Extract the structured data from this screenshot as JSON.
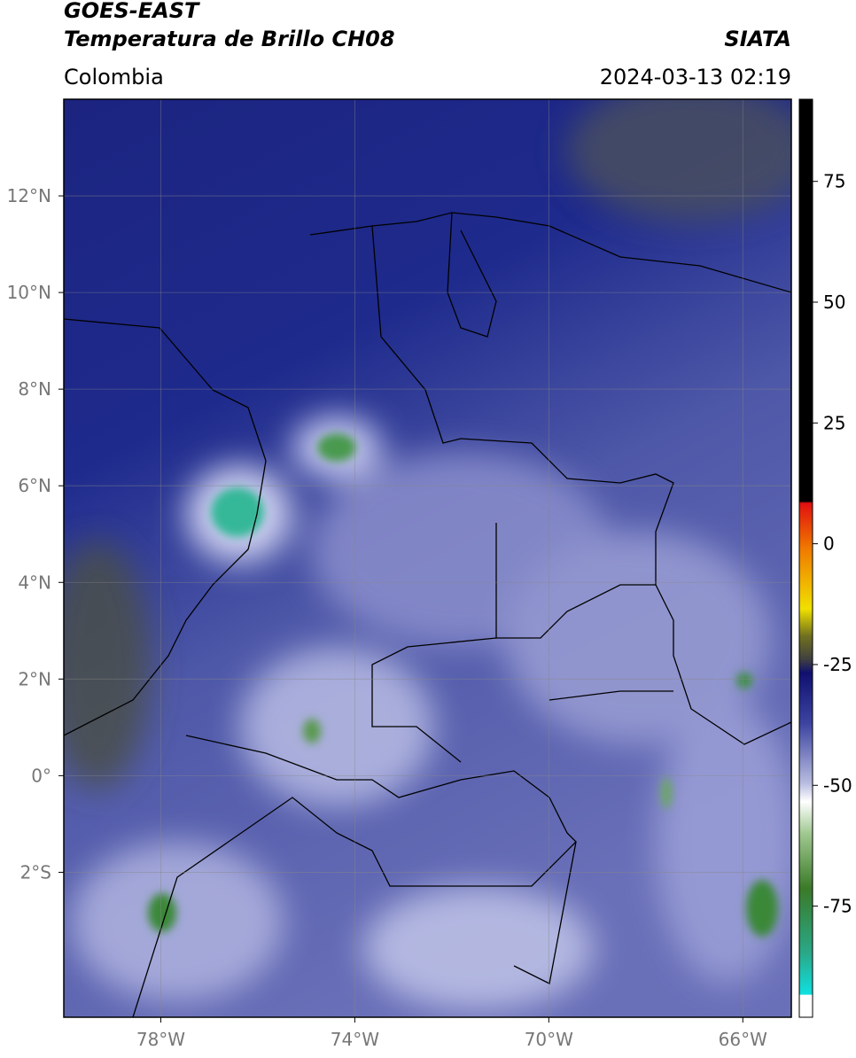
{
  "header": {
    "title": "GOES-EAST",
    "subtitle": "Temperatura de Brillo CH08",
    "source": "SIATA",
    "region": "Colombia",
    "timestamp": "2024-03-13 02:19"
  },
  "map": {
    "lon_range": [
      -80,
      -65
    ],
    "lat_range": [
      -5,
      14
    ],
    "lat_ticks": [
      {
        "value": 12,
        "label": "12°N"
      },
      {
        "value": 10,
        "label": "10°N"
      },
      {
        "value": 8,
        "label": "8°N"
      },
      {
        "value": 6,
        "label": "6°N"
      },
      {
        "value": 4,
        "label": "4°N"
      },
      {
        "value": 2,
        "label": "2°N"
      },
      {
        "value": 0,
        "label": "0°"
      },
      {
        "value": -2,
        "label": "2°S"
      }
    ],
    "lon_ticks": [
      {
        "value": -78,
        "label": "78°W"
      },
      {
        "value": -74,
        "label": "74°W"
      },
      {
        "value": -70,
        "label": "70°W"
      },
      {
        "value": -66,
        "label": "66°W"
      }
    ]
  },
  "colorbar": {
    "range": [
      -98,
      92
    ],
    "ticks": [
      75,
      50,
      25,
      0,
      -25,
      -50,
      -75
    ]
  }
}
